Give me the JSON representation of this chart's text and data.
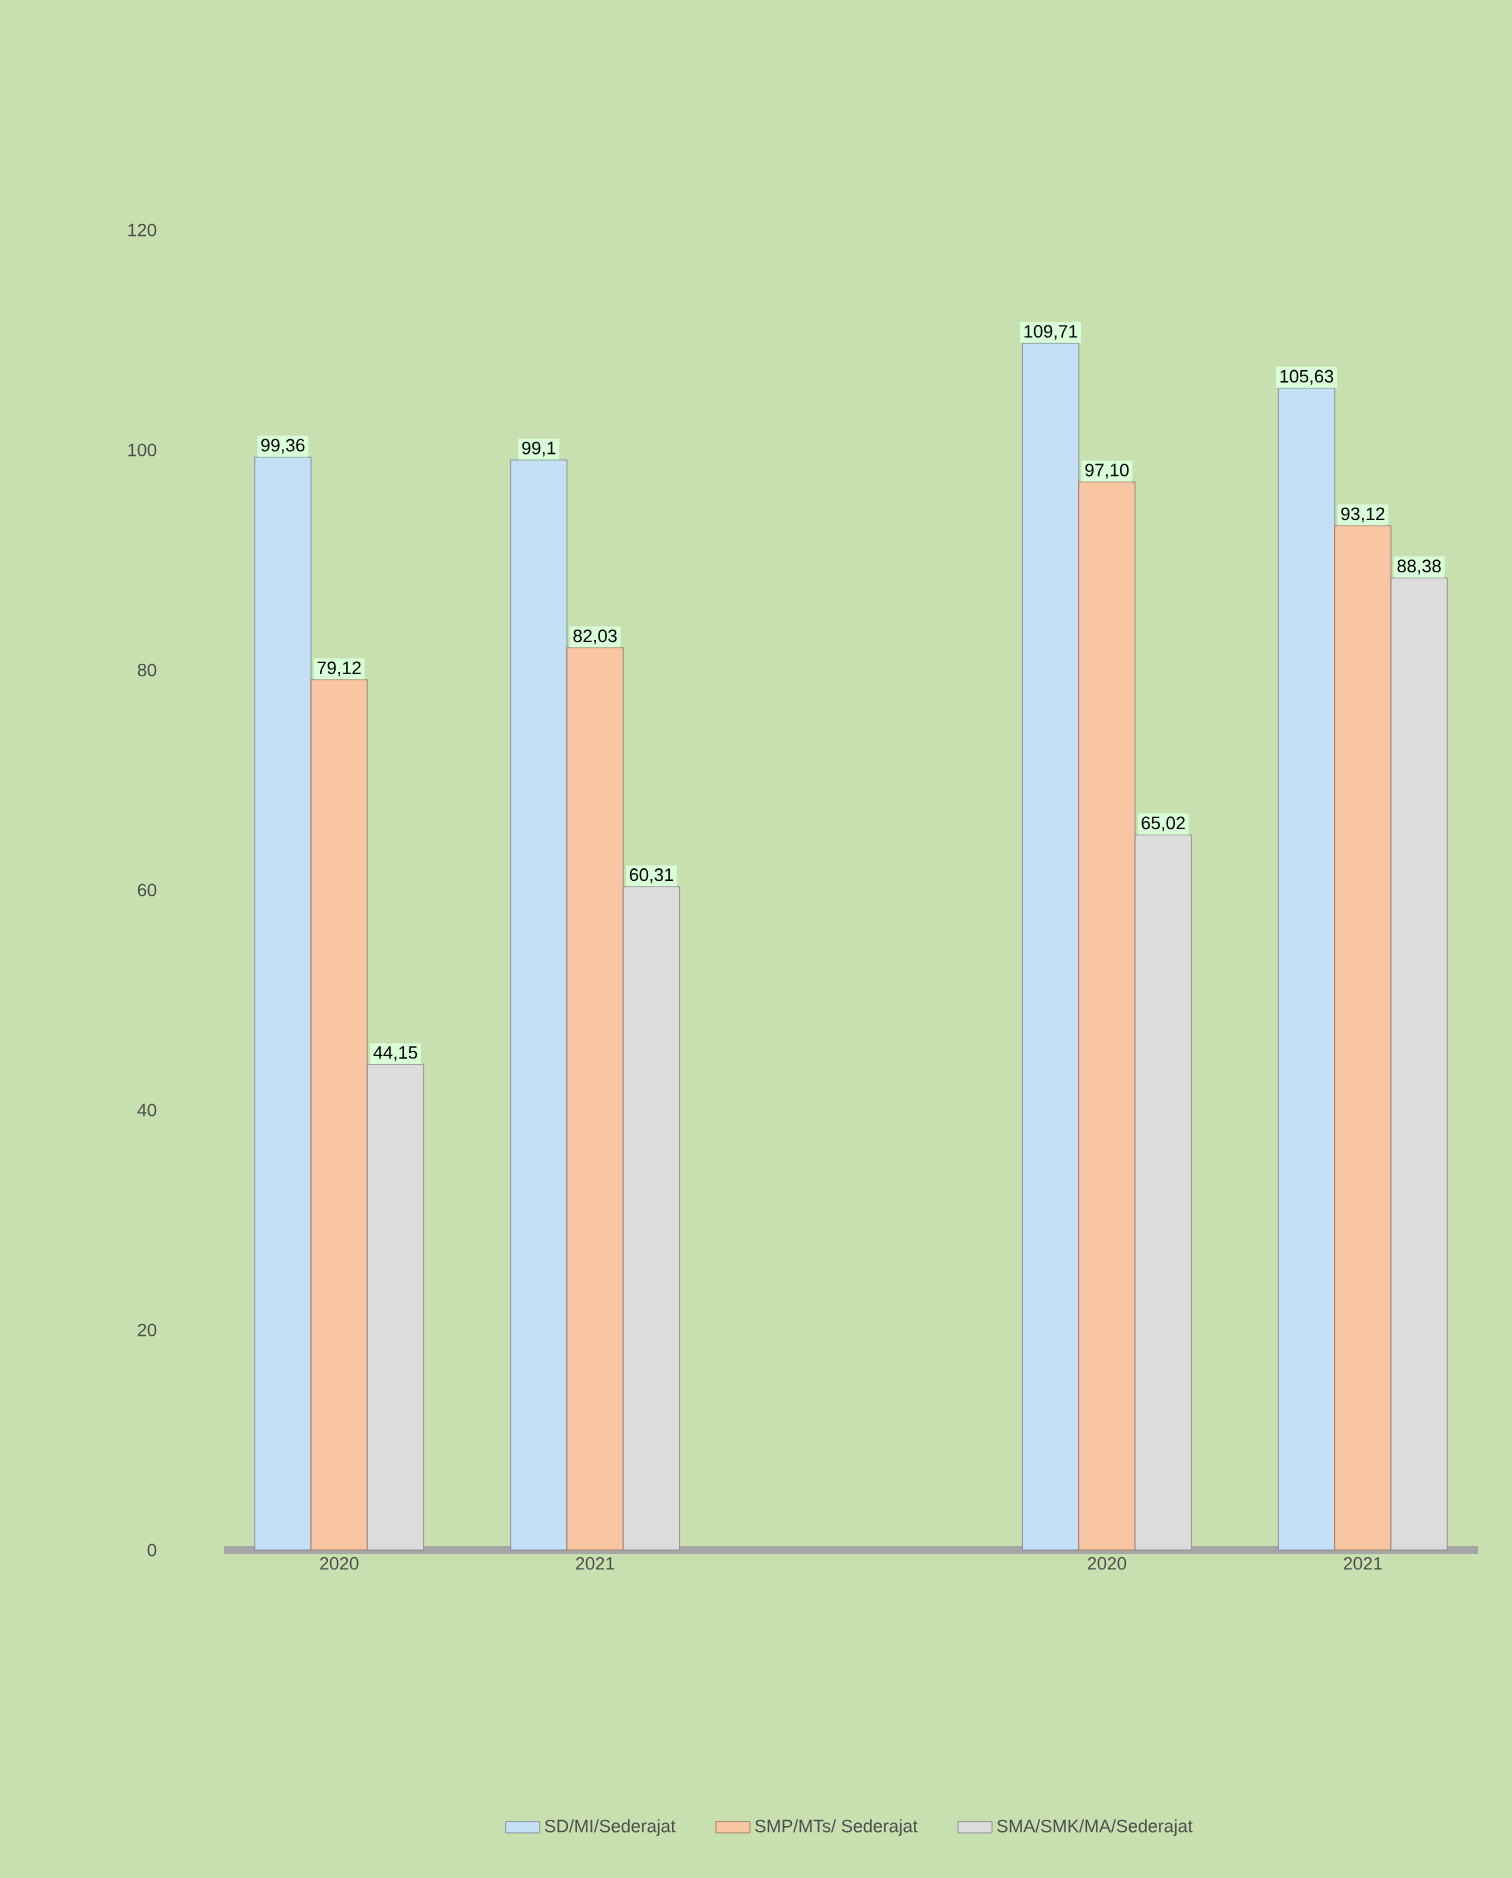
{
  "chart_data": {
    "type": "bar",
    "categories": [
      "2020",
      "2021",
      null,
      "2020",
      "2021"
    ],
    "series": [
      {
        "name": "SD/MI/Sederajat",
        "color": "#c5dff5",
        "values": [
          99.36,
          99.1,
          null,
          109.71,
          105.63
        ],
        "value_labels": [
          "99,36",
          "99,1",
          null,
          "109,71",
          "105,63"
        ]
      },
      {
        "name": "SMP/MTs/ Sederajat",
        "color": "#f9c6a4",
        "values": [
          79.12,
          82.03,
          null,
          97.1,
          93.12
        ],
        "value_labels": [
          "79,12",
          "82,03",
          null,
          "97,10",
          "93,12"
        ]
      },
      {
        "name": "SMA/SMK/MA/Sederajat",
        "color": "#dcdcdc",
        "values": [
          44.15,
          60.31,
          null,
          65.02,
          88.38
        ],
        "value_labels": [
          "44,15",
          "60,31",
          null,
          "65,02",
          "88,38"
        ]
      }
    ],
    "ylim": [
      0,
      120
    ],
    "yticks": [
      0,
      20,
      40,
      60,
      80,
      100,
      120
    ],
    "legend": "bottom"
  }
}
